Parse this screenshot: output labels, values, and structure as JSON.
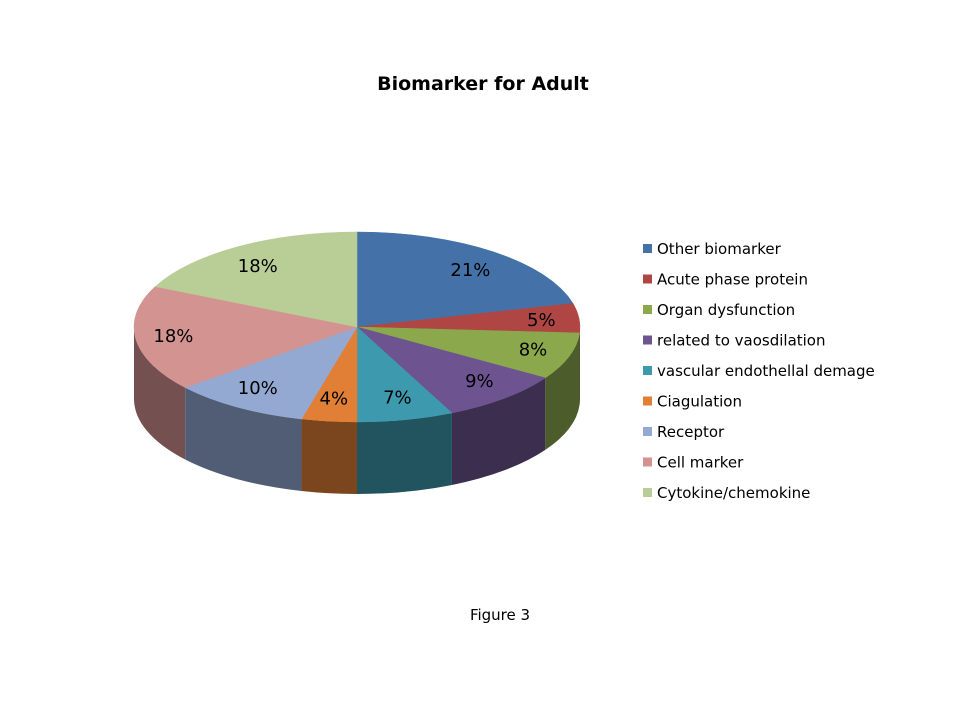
{
  "chart_data": {
    "type": "pie",
    "title": "Biomarker for Adult",
    "legend_position": "right",
    "slices": [
      {
        "label": "Other biomarker",
        "value": 21,
        "display": "21%",
        "color": "#4472a8"
      },
      {
        "label": "Acute phase protein",
        "value": 5,
        "display": "5%",
        "color": "#b04644"
      },
      {
        "label": "Organ dysfunction",
        "value": 8,
        "display": "8%",
        "color": "#8ba84c"
      },
      {
        "label": "related to vaosdilation",
        "value": 9,
        "display": "9%",
        "color": "#6d5390"
      },
      {
        "label": "vascular endothellal demage",
        "value": 7,
        "display": "7%",
        "color": "#3d99ae"
      },
      {
        "label": "Ciagulation",
        "value": 4,
        "display": "4%",
        "color": "#e07f35"
      },
      {
        "label": "Receptor",
        "value": 10,
        "display": "10%",
        "color": "#93a9d2"
      },
      {
        "label": "Cell marker",
        "value": 18,
        "display": "18%",
        "color": "#d39391"
      },
      {
        "label": "Cytokine/chemokine",
        "value": 18,
        "display": "18%",
        "color": "#b9cd96"
      }
    ]
  },
  "caption": "Figure 3"
}
